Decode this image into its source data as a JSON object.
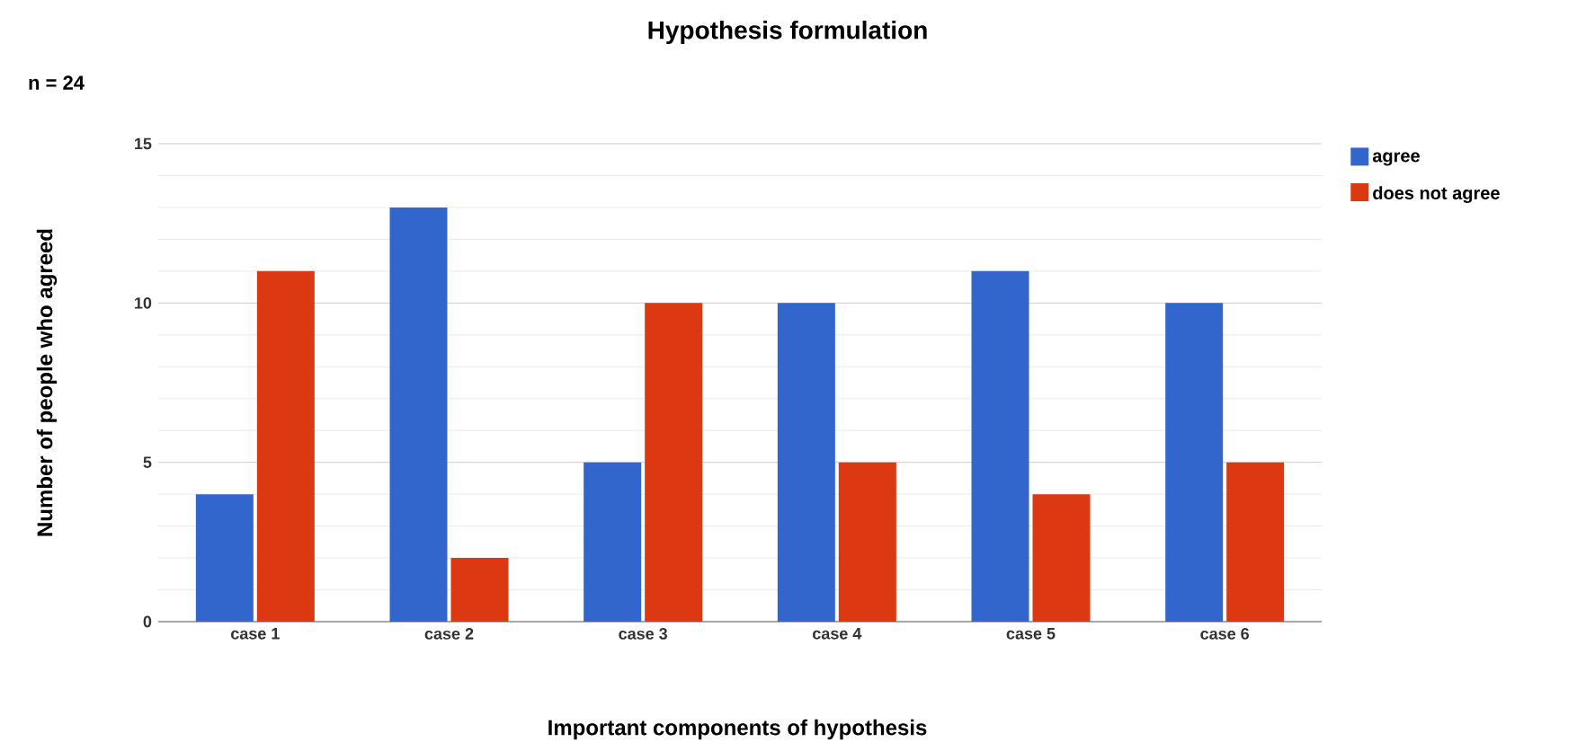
{
  "chart_data": {
    "type": "bar",
    "title": "Hypothesis formulation",
    "xlabel": "Important components of hypothesis",
    "ylabel": "Number of people who agreed",
    "annotations": [
      "n = 24"
    ],
    "categories": [
      "case 1",
      "case 2",
      "case 3",
      "case 4",
      "case 5",
      "case 6"
    ],
    "series": [
      {
        "name": "agree",
        "color": "#3366cc",
        "values": [
          4,
          13,
          5,
          10,
          11,
          10
        ]
      },
      {
        "name": "does not agree",
        "color": "#dc3912",
        "values": [
          11,
          2,
          10,
          5,
          4,
          5
        ]
      }
    ],
    "ylim": [
      0,
      15
    ],
    "yticks": [
      0,
      5,
      10,
      15
    ],
    "grid": "y",
    "legend": "top right"
  }
}
